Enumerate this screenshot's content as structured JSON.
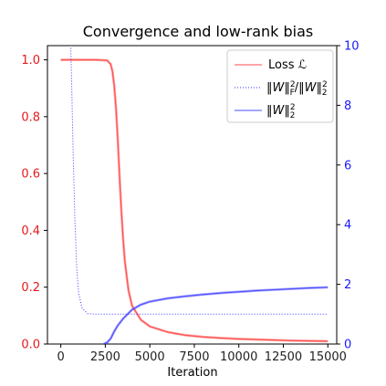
{
  "chart_data": {
    "type": "line",
    "title": "Convergence and low-rank bias",
    "xlabel": "Iteration",
    "ylabel_left": "",
    "ylabel_right": "",
    "xlim": [
      -750,
      15500
    ],
    "ylim_left": [
      0.0,
      1.05
    ],
    "ylim_right": [
      0,
      10
    ],
    "x_ticks": [
      0,
      2500,
      5000,
      7500,
      10000,
      12500,
      15000
    ],
    "y_ticks_left": [
      0.0,
      0.2,
      0.4,
      0.6,
      0.8,
      1.0
    ],
    "y_ticks_right": [
      0,
      2,
      4,
      6,
      8,
      10
    ],
    "grid": false,
    "legend_position": "top-right",
    "colors": {
      "loss": "#ff4d4d",
      "ratio": "#3333ff",
      "spectral": "#4d4dff",
      "left_axis": "#e41a1c",
      "right_axis": "#1a1aff"
    },
    "series": [
      {
        "name": "Loss ℒ",
        "axis": "left",
        "style": "solid",
        "x": [
          0,
          1000,
          2000,
          2600,
          2800,
          2900,
          3000,
          3100,
          3200,
          3300,
          3400,
          3500,
          3600,
          3800,
          4000,
          4500,
          5000,
          6000,
          7000,
          8000,
          9000,
          10000,
          11000,
          12000,
          13000,
          14000,
          15000
        ],
        "y": [
          1.0,
          1.0,
          1.0,
          0.998,
          0.985,
          0.96,
          0.91,
          0.83,
          0.72,
          0.59,
          0.47,
          0.37,
          0.29,
          0.19,
          0.135,
          0.085,
          0.062,
          0.042,
          0.031,
          0.025,
          0.021,
          0.018,
          0.016,
          0.014,
          0.012,
          0.011,
          0.01
        ]
      },
      {
        "name": "‖W‖²_F / ‖W‖²_2",
        "axis": "right",
        "style": "dotted",
        "x": [
          550,
          600,
          700,
          800,
          900,
          1000,
          1200,
          1500,
          2000,
          3000,
          4000,
          5000,
          6000,
          7000,
          8000,
          9000,
          10000,
          11000,
          12000,
          13000,
          14000,
          15000
        ],
        "y": [
          10.2,
          9.0,
          6.2,
          4.0,
          2.5,
          1.7,
          1.2,
          1.02,
          1.0,
          1.0,
          1.0,
          1.0,
          1.0,
          1.0,
          1.0,
          1.0,
          1.0,
          1.0,
          1.0,
          1.0,
          1.0,
          1.0
        ]
      },
      {
        "name": "‖W‖²_2",
        "axis": "right",
        "style": "solid",
        "x": [
          2400,
          2600,
          2800,
          3000,
          3200,
          3500,
          4000,
          4500,
          5000,
          6000,
          7000,
          8000,
          9000,
          10000,
          11000,
          12000,
          13000,
          14000,
          15000
        ],
        "y": [
          0.0,
          0.05,
          0.18,
          0.42,
          0.62,
          0.85,
          1.15,
          1.32,
          1.42,
          1.53,
          1.6,
          1.66,
          1.71,
          1.75,
          1.79,
          1.82,
          1.85,
          1.88,
          1.9
        ]
      }
    ],
    "legend": [
      {
        "label": "Loss ℒ",
        "color": "#ff4d4d",
        "style": "solid"
      },
      {
        "label": "‖W‖²_F / ‖W‖²_2",
        "color": "#3333ff",
        "style": "dotted"
      },
      {
        "label": "‖W‖²_2",
        "color": "#4d4dff",
        "style": "solid"
      }
    ]
  }
}
